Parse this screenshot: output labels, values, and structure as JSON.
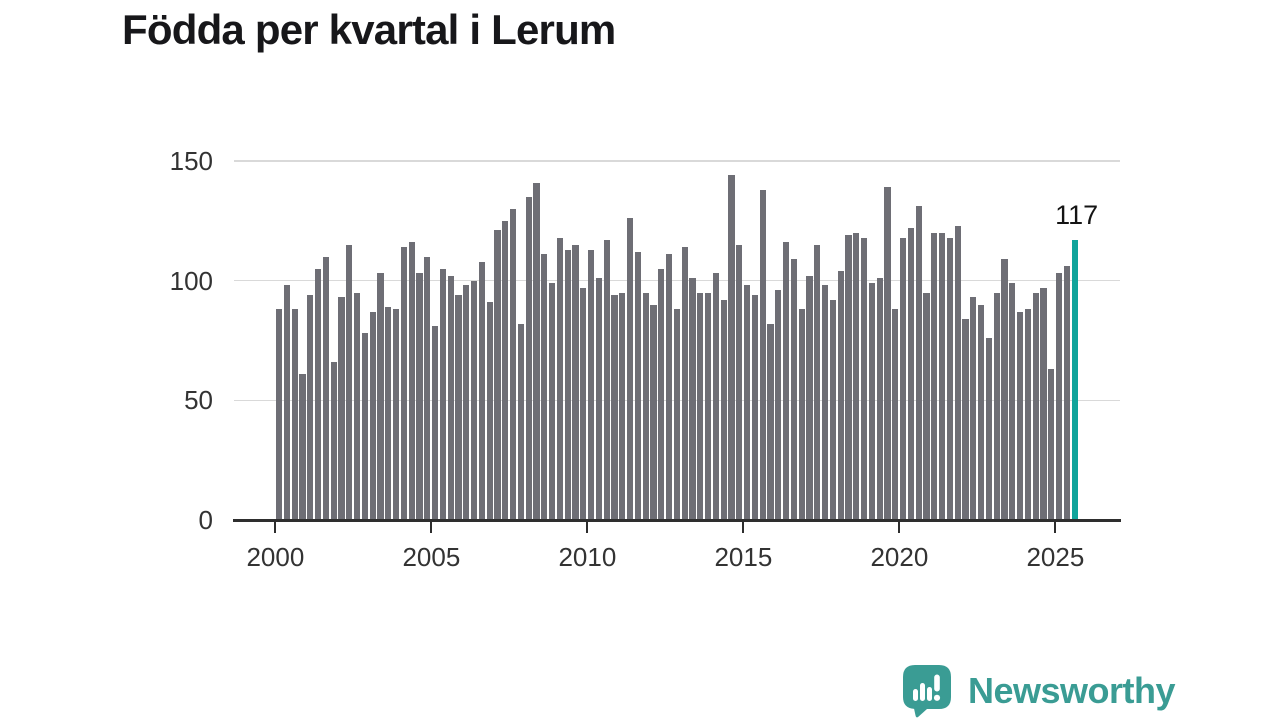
{
  "title": "Födda per kvartal i Lerum",
  "chart_data": {
    "type": "bar",
    "title": "Födda per kvartal i Lerum",
    "frequency": "quarterly",
    "x_start": "2000-Q1",
    "x_end": "2025-Q3",
    "values": [
      88,
      98,
      88,
      61,
      94,
      105,
      110,
      66,
      93,
      115,
      95,
      78,
      87,
      103,
      89,
      88,
      114,
      116,
      103,
      110,
      81,
      105,
      102,
      94,
      98,
      100,
      108,
      91,
      121,
      125,
      130,
      82,
      135,
      141,
      111,
      99,
      118,
      113,
      115,
      97,
      113,
      101,
      117,
      94,
      95,
      126,
      112,
      95,
      90,
      105,
      111,
      88,
      114,
      101,
      95,
      95,
      103,
      92,
      144,
      115,
      98,
      94,
      138,
      82,
      96,
      116,
      109,
      88,
      102,
      115,
      98,
      92,
      104,
      119,
      120,
      118,
      99,
      101,
      139,
      88,
      118,
      122,
      131,
      95,
      120,
      120,
      118,
      123,
      84,
      93,
      90,
      76,
      95,
      109,
      99,
      87,
      88,
      95,
      97,
      63,
      103,
      106,
      117
    ],
    "ylim": [
      0,
      150
    ],
    "y_ticks": [
      0,
      50,
      100,
      150
    ],
    "x_ticks": [
      "2000",
      "2005",
      "2010",
      "2015",
      "2020",
      "2025"
    ],
    "grid": "horizontal",
    "legend": "none",
    "highlight_index": 102,
    "annotation": {
      "text": "117",
      "target": "last-bar"
    },
    "colors": {
      "bar": "#6e6e75",
      "highlight": "#10a49b",
      "grid": "#d9d9d9",
      "axis": "#2e2e2e",
      "tick_text": "#333333",
      "annotation_text": "#141414"
    }
  },
  "branding": {
    "logo_text": "Newsworthy",
    "logo_color": "#3a9c94",
    "logo_icon": "speech-bubble-bar-chart-icon"
  }
}
